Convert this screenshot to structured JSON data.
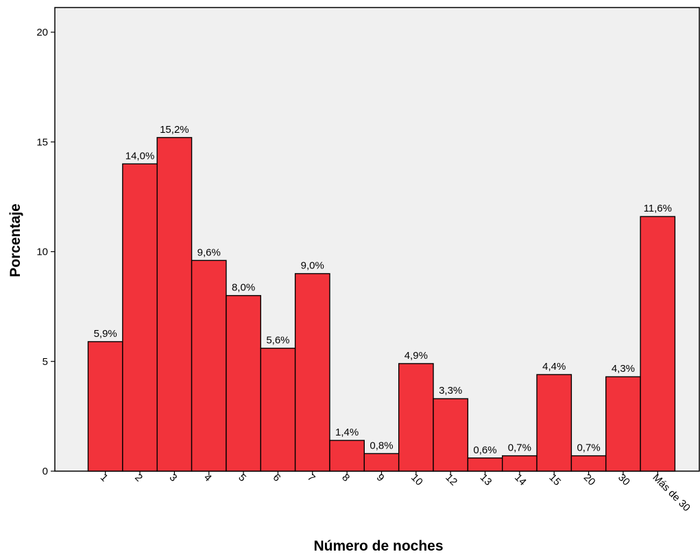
{
  "chart_data": {
    "type": "bar",
    "xlabel": "Número de noches",
    "ylabel": "Porcentaje",
    "ylim": [
      0,
      20
    ],
    "yticks": [
      0,
      5,
      10,
      15,
      20
    ],
    "grid": false,
    "colors": {
      "plot_bg": "#f0f0f0",
      "bar_fill": "#f2333b",
      "bar_stroke": "#000000"
    },
    "categories": [
      "1",
      "2",
      "3",
      "4",
      "5",
      "6",
      "7",
      "8",
      "9",
      "10",
      "12",
      "13",
      "14",
      "15",
      "20",
      "30",
      "Más de 30"
    ],
    "values": [
      5.9,
      14.0,
      15.2,
      9.6,
      8.0,
      5.6,
      9.0,
      1.4,
      0.8,
      4.9,
      3.3,
      0.6,
      0.7,
      4.4,
      0.7,
      4.3,
      11.6
    ],
    "data_labels": [
      "5,9%",
      "14,0%",
      "15,2%",
      "9,6%",
      "8,0%",
      "5,6%",
      "9,0%",
      "1,4%",
      "0,8%",
      "4,9%",
      "3,3%",
      "0,6%",
      "0,7%",
      "4,4%",
      "0,7%",
      "4,3%",
      "11,6%"
    ]
  }
}
